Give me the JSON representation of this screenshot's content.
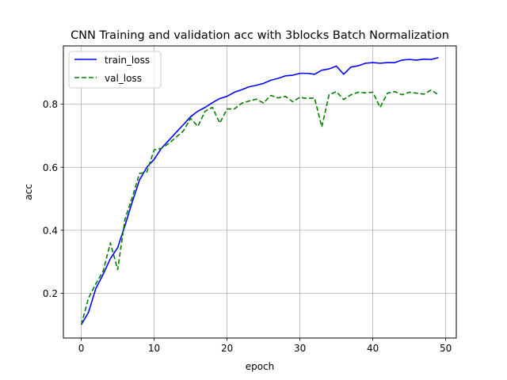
{
  "chart_data": {
    "type": "line",
    "title": "CNN Training and validation acc with 3blocks Batch Normalization",
    "xlabel": "epoch",
    "ylabel": "acc",
    "xlim": [
      -2.45,
      51.45
    ],
    "ylim": [
      0.058,
      0.985
    ],
    "x_ticks": [
      0,
      10,
      20,
      30,
      40,
      50
    ],
    "y_ticks": [
      0.2,
      0.4,
      0.6,
      0.8
    ],
    "grid": true,
    "legend_position": "top-left",
    "x": [
      0,
      1,
      2,
      3,
      4,
      5,
      6,
      7,
      8,
      9,
      10,
      11,
      12,
      13,
      14,
      15,
      16,
      17,
      18,
      19,
      20,
      21,
      22,
      23,
      24,
      25,
      26,
      27,
      28,
      29,
      30,
      31,
      32,
      33,
      34,
      35,
      36,
      37,
      38,
      39,
      40,
      41,
      42,
      43,
      44,
      45,
      46,
      47,
      48,
      49
    ],
    "series": [
      {
        "name": "train_loss",
        "color": "#0000ff",
        "style": "solid",
        "values": [
          0.1,
          0.14,
          0.215,
          0.26,
          0.31,
          0.345,
          0.415,
          0.49,
          0.56,
          0.6,
          0.625,
          0.66,
          0.685,
          0.71,
          0.735,
          0.76,
          0.778,
          0.79,
          0.805,
          0.818,
          0.825,
          0.838,
          0.846,
          0.855,
          0.86,
          0.866,
          0.876,
          0.882,
          0.89,
          0.892,
          0.898,
          0.898,
          0.895,
          0.908,
          0.912,
          0.921,
          0.895,
          0.918,
          0.922,
          0.93,
          0.932,
          0.93,
          0.932,
          0.932,
          0.94,
          0.942,
          0.94,
          0.943,
          0.942,
          0.948
        ]
      },
      {
        "name": "val_loss",
        "color": "#008000",
        "style": "dashed",
        "values": [
          0.1,
          0.185,
          0.23,
          0.27,
          0.36,
          0.275,
          0.435,
          0.505,
          0.58,
          0.585,
          0.655,
          0.66,
          0.675,
          0.695,
          0.715,
          0.755,
          0.73,
          0.778,
          0.79,
          0.74,
          0.785,
          0.785,
          0.803,
          0.81,
          0.816,
          0.804,
          0.828,
          0.82,
          0.825,
          0.808,
          0.822,
          0.818,
          0.82,
          0.728,
          0.83,
          0.84,
          0.815,
          0.83,
          0.838,
          0.836,
          0.838,
          0.79,
          0.835,
          0.84,
          0.83,
          0.838,
          0.835,
          0.832,
          0.845,
          0.83
        ]
      }
    ]
  }
}
